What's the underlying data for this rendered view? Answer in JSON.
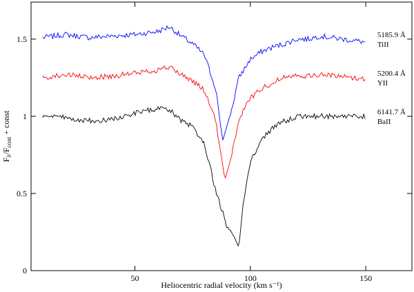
{
  "chart_data": {
    "type": "line",
    "xlabel": "Heliocentric radial velocity (km s⁻¹)",
    "ylabel_main": "F",
    "ylabel_sub1": "λ",
    "ylabel_mid": "/F",
    "ylabel_sub2": "cont",
    "ylabel_tail": " + const",
    "xlim": [
      5,
      170
    ],
    "ylim": [
      0,
      1.74
    ],
    "x_ticks": [
      {
        "value": 50,
        "label": "50"
      },
      {
        "value": 100,
        "label": "100"
      },
      {
        "value": 150,
        "label": "150"
      }
    ],
    "y_ticks": [
      {
        "value": 0,
        "label": "0"
      },
      {
        "value": 0.5,
        "label": "0.5"
      },
      {
        "value": 1,
        "label": "1"
      },
      {
        "value": 1.5,
        "label": "1.5"
      }
    ],
    "series": [
      {
        "name": "TiII",
        "wavelength": "5185.9 Å",
        "color": "#0000ff",
        "continuum": 1.5,
        "line_center": 88.7,
        "line_min": 0.84,
        "x": [
          10,
          20,
          30,
          40,
          50,
          60,
          65,
          70,
          75,
          80,
          85,
          88,
          92,
          95,
          100,
          105,
          110,
          115,
          120,
          125,
          130,
          140,
          150
        ],
        "y": [
          1.51,
          1.53,
          1.51,
          1.52,
          1.53,
          1.55,
          1.58,
          1.52,
          1.47,
          1.4,
          1.18,
          0.84,
          1.05,
          1.25,
          1.37,
          1.42,
          1.45,
          1.47,
          1.5,
          1.5,
          1.52,
          1.5,
          1.48
        ]
      },
      {
        "name": "YII",
        "wavelength": "5200.4 Å",
        "color": "#ff0000",
        "continuum": 1.25,
        "line_center": 89.2,
        "line_min": 0.59,
        "x": [
          10,
          20,
          30,
          40,
          50,
          60,
          65,
          70,
          75,
          80,
          85,
          89,
          92,
          95,
          100,
          105,
          110,
          115,
          120,
          125,
          130,
          140,
          150
        ],
        "y": [
          1.25,
          1.27,
          1.25,
          1.26,
          1.28,
          1.3,
          1.32,
          1.27,
          1.23,
          1.17,
          0.97,
          0.59,
          0.75,
          0.98,
          1.12,
          1.18,
          1.22,
          1.26,
          1.27,
          1.26,
          1.27,
          1.26,
          1.24
        ]
      },
      {
        "name": "BaII",
        "wavelength": "6141.7 Å",
        "color": "#000000",
        "continuum": 1.0,
        "line_center": 94.8,
        "line_min": 0.15,
        "x": [
          10,
          20,
          30,
          40,
          50,
          60,
          65,
          70,
          75,
          80,
          85,
          90,
          93,
          95,
          97,
          100,
          105,
          110,
          115,
          120,
          130,
          140,
          150
        ],
        "y": [
          1.0,
          0.99,
          0.97,
          0.98,
          1.02,
          1.05,
          1.04,
          0.97,
          0.93,
          0.83,
          0.52,
          0.28,
          0.22,
          0.15,
          0.45,
          0.7,
          0.85,
          0.93,
          0.97,
          1.0,
          1.0,
          1.0,
          1.0
        ]
      }
    ]
  }
}
